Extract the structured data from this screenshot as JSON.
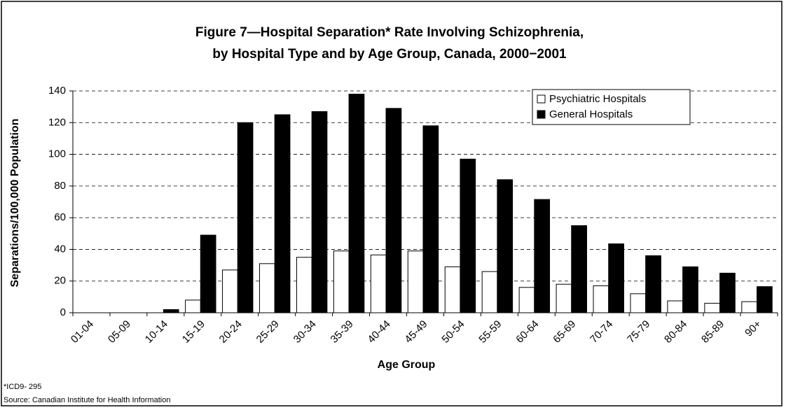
{
  "chart_data": {
    "type": "bar",
    "title": "Figure 7—Hospital Separation* Rate Involving Schizophrenia,",
    "subtitle": "by Hospital Type and by Age Group, Canada, 2000−2001",
    "x_label": "Age Group",
    "y_label": "Separations/100,000 Population",
    "footnotes": [
      "*ICD9- 295",
      "Source: Canadian Institute for Health Information"
    ],
    "categories": [
      "01-04",
      "05-09",
      "10-14",
      "15-19",
      "20-24",
      "25-29",
      "30-34",
      "35-39",
      "40-44",
      "45-49",
      "50-54",
      "55-59",
      "60-64",
      "65-69",
      "70-74",
      "75-79",
      "80-84",
      "85-89",
      "90+"
    ],
    "series": [
      {
        "name": "Psychiatric Hospitals",
        "color": "#ffffff",
        "values": [
          0,
          0,
          0,
          8,
          27,
          31,
          35,
          39,
          36.5,
          39,
          29,
          26,
          16,
          18,
          17,
          12,
          7.5,
          6,
          7
        ]
      },
      {
        "name": "General Hospitals",
        "color": "#000000",
        "values": [
          0,
          0,
          2,
          49,
          120,
          125,
          127,
          138,
          129,
          118,
          97,
          84,
          71.5,
          55,
          43.5,
          36,
          29,
          25,
          16.5
        ]
      }
    ],
    "ylim": [
      0,
      140
    ],
    "yticks": [
      0,
      20,
      40,
      60,
      80,
      100,
      120,
      140
    ],
    "grid": true,
    "legend": "top-right"
  }
}
